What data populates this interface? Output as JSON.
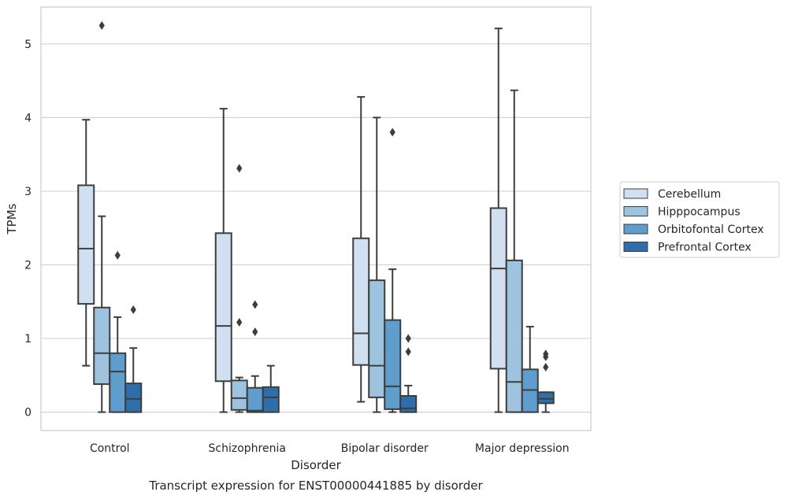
{
  "chart_data": {
    "type": "boxplot",
    "caption": "Transcript expression for ENST00000441885 by disorder",
    "xlabel": "Disorder",
    "ylabel": "TPMs",
    "ylim": [
      -0.25,
      5.5
    ],
    "yticks": [
      0,
      1,
      2,
      3,
      4,
      5
    ],
    "grid": "horizontal",
    "legend_position": "right",
    "categories": [
      "Control",
      "Schizophrenia",
      "Bipolar disorder",
      "Major depression"
    ],
    "series": [
      {
        "name": "Cerebellum",
        "color": "#d1e0f1",
        "boxes": [
          {
            "whislo": 0.63,
            "q1": 1.47,
            "med": 2.22,
            "q3": 3.08,
            "whishi": 3.97,
            "fliers": []
          },
          {
            "whislo": 0.0,
            "q1": 0.42,
            "med": 1.17,
            "q3": 2.43,
            "whishi": 4.12,
            "fliers": []
          },
          {
            "whislo": 0.14,
            "q1": 0.64,
            "med": 1.07,
            "q3": 2.36,
            "whishi": 4.28,
            "fliers": []
          },
          {
            "whislo": 0.0,
            "q1": 0.59,
            "med": 1.95,
            "q3": 2.77,
            "whishi": 5.21,
            "fliers": []
          }
        ]
      },
      {
        "name": "Hipppocampus",
        "color": "#9dc3de",
        "boxes": [
          {
            "whislo": 0.0,
            "q1": 0.38,
            "med": 0.8,
            "q3": 1.42,
            "whishi": 2.66,
            "fliers": [
              5.25
            ]
          },
          {
            "whislo": 0.0,
            "q1": 0.03,
            "med": 0.19,
            "q3": 0.43,
            "whishi": 0.47,
            "fliers": [
              3.31,
              1.22
            ]
          },
          {
            "whislo": 0.0,
            "q1": 0.2,
            "med": 0.63,
            "q3": 1.79,
            "whishi": 4.0,
            "fliers": []
          },
          {
            "whislo": 0.0,
            "q1": 0.0,
            "med": 0.41,
            "q3": 2.06,
            "whishi": 4.37,
            "fliers": []
          }
        ]
      },
      {
        "name": "Orbitofontal Cortex",
        "color": "#5e9dcc",
        "boxes": [
          {
            "whislo": 0.0,
            "q1": 0.0,
            "med": 0.55,
            "q3": 0.8,
            "whishi": 1.29,
            "fliers": [
              2.13
            ]
          },
          {
            "whislo": 0.0,
            "q1": 0.0,
            "med": 0.02,
            "q3": 0.33,
            "whishi": 0.49,
            "fliers": [
              1.46,
              1.09
            ]
          },
          {
            "whislo": 0.0,
            "q1": 0.04,
            "med": 0.35,
            "q3": 1.25,
            "whishi": 1.94,
            "fliers": [
              3.8
            ]
          },
          {
            "whislo": 0.0,
            "q1": 0.0,
            "med": 0.3,
            "q3": 0.58,
            "whishi": 1.16,
            "fliers": []
          }
        ]
      },
      {
        "name": "Prefrontal Cortex",
        "color": "#2e6fab",
        "boxes": [
          {
            "whislo": 0.0,
            "q1": 0.0,
            "med": 0.18,
            "q3": 0.39,
            "whishi": 0.87,
            "fliers": [
              1.39
            ]
          },
          {
            "whislo": 0.0,
            "q1": 0.0,
            "med": 0.2,
            "q3": 0.34,
            "whishi": 0.63,
            "fliers": []
          },
          {
            "whislo": 0.0,
            "q1": 0.0,
            "med": 0.05,
            "q3": 0.22,
            "whishi": 0.36,
            "fliers": [
              1.0,
              0.82
            ]
          },
          {
            "whislo": 0.0,
            "q1": 0.12,
            "med": 0.18,
            "q3": 0.27,
            "whishi": 0.27,
            "fliers": [
              0.79,
              0.75,
              0.61
            ]
          }
        ]
      }
    ]
  }
}
